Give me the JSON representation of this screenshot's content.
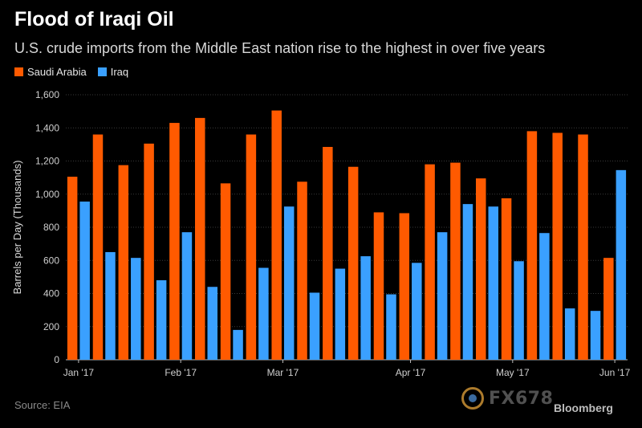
{
  "header": {
    "title": "Flood of Iraqi Oil",
    "subtitle": "U.S. crude imports from the Middle East nation rise to the highest in over five years"
  },
  "legend": [
    {
      "name": "Saudi Arabia",
      "color": "#ff5a00"
    },
    {
      "name": "Iraq",
      "color": "#3aa0ff"
    }
  ],
  "footer": {
    "source": "Source: EIA",
    "watermark": "FX678",
    "brand": "Bloomberg"
  },
  "chart_data": {
    "type": "bar",
    "ylabel": "Barrels per Day (Thousands)",
    "ylim": [
      0,
      1600
    ],
    "yticks": [
      0,
      200,
      400,
      600,
      800,
      1000,
      1200,
      1400,
      1600
    ],
    "ytick_labels": [
      "0",
      "200",
      "400",
      "600",
      "800",
      "1,000",
      "1,200",
      "1,400",
      "1,600"
    ],
    "xtick_labels": [
      {
        "label": "Jan '17",
        "index": 0
      },
      {
        "label": "Feb '17",
        "index": 4
      },
      {
        "label": "Mar '17",
        "index": 8
      },
      {
        "label": "Apr '17",
        "index": 13
      },
      {
        "label": "May '17",
        "index": 17
      },
      {
        "label": "Jun '17",
        "index": 21
      }
    ],
    "grid": true,
    "legend_position": "top-left",
    "series": [
      {
        "name": "Saudi Arabia",
        "color": "#ff5a00",
        "values": [
          1105,
          1360,
          1175,
          1305,
          1430,
          1460,
          1065,
          1360,
          1505,
          1075,
          1285,
          1165,
          890,
          885,
          1180,
          1190,
          1095,
          975,
          1380,
          1370,
          1360,
          615
        ]
      },
      {
        "name": "Iraq",
        "color": "#3aa0ff",
        "values": [
          955,
          650,
          615,
          480,
          770,
          440,
          180,
          555,
          925,
          405,
          550,
          625,
          395,
          585,
          770,
          940,
          925,
          595,
          765,
          310,
          295,
          1145
        ]
      }
    ]
  }
}
